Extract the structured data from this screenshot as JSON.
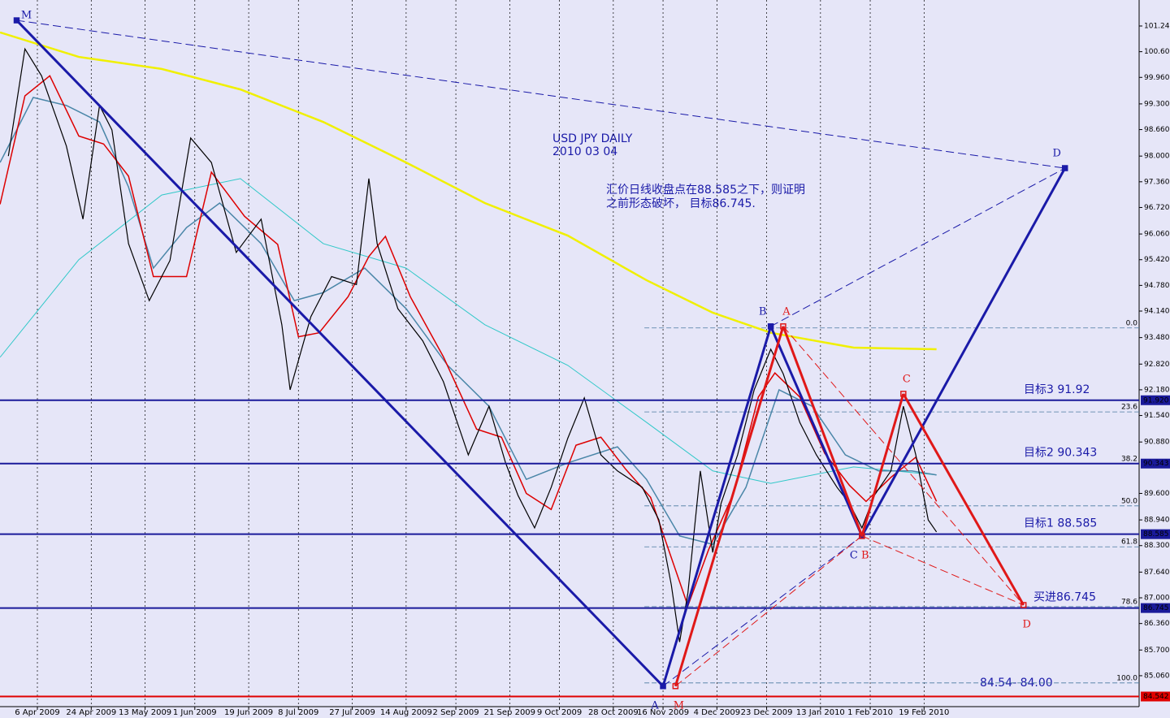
{
  "chart_data": {
    "type": "line",
    "title": "USD JPY  DAILY",
    "subtitle": "2010 03 04",
    "annotations": [
      "汇价日线收盘点在88.585之下，则证明",
      "之前形态破坏， 目标86.745."
    ],
    "range_note": "84.54- 84.00",
    "xlim": [
      -9.02,
      265.9
    ],
    "ylim": [
      84.29,
      101.887
    ],
    "grid": true,
    "xticks": [
      {
        "value": 0,
        "label": "6 Apr 2009"
      },
      {
        "value": 13,
        "label": "24 Apr 2009"
      },
      {
        "value": 26,
        "label": "13 May 2009"
      },
      {
        "value": 38,
        "label": "1 Jun 2009"
      },
      {
        "value": 51,
        "label": "19 Jun 2009"
      },
      {
        "value": 63,
        "label": "8 Jul 2009"
      },
      {
        "value": 76,
        "label": "27 Jul 2009"
      },
      {
        "value": 89,
        "label": "14 Aug 2009"
      },
      {
        "value": 101,
        "label": "2 Sep 2009"
      },
      {
        "value": 114,
        "label": "21 Sep 2009"
      },
      {
        "value": 126,
        "label": "9 Oct 2009"
      },
      {
        "value": 139,
        "label": "28 Oct 2009"
      },
      {
        "value": 151,
        "label": "16 Nov 2009"
      },
      {
        "value": 164,
        "label": "4 Dec 2009"
      },
      {
        "value": 176,
        "label": "23 Dec 2009"
      },
      {
        "value": 189,
        "label": "13 Jan 2010"
      },
      {
        "value": 201,
        "label": "1 Feb 2010"
      },
      {
        "value": 214,
        "label": "19 Feb 2010"
      }
    ],
    "yticks": [
      {
        "value": 101.24,
        "label": "101.240"
      },
      {
        "value": 100.6,
        "label": "100.600"
      },
      {
        "value": 99.96,
        "label": "99.960"
      },
      {
        "value": 99.3,
        "label": "99.300"
      },
      {
        "value": 98.66,
        "label": "98.660"
      },
      {
        "value": 98.0,
        "label": "98.000"
      },
      {
        "value": 97.36,
        "label": "97.360"
      },
      {
        "value": 96.72,
        "label": "96.720"
      },
      {
        "value": 96.06,
        "label": "96.060"
      },
      {
        "value": 95.42,
        "label": "95.420"
      },
      {
        "value": 94.78,
        "label": "94.780"
      },
      {
        "value": 94.14,
        "label": "94.140"
      },
      {
        "value": 93.48,
        "label": "93.480"
      },
      {
        "value": 92.82,
        "label": "92.820"
      },
      {
        "value": 92.18,
        "label": "92.180"
      },
      {
        "value": 91.54,
        "label": "91.540"
      },
      {
        "value": 90.88,
        "label": "90.880"
      },
      {
        "value": 89.6,
        "label": "89.600"
      },
      {
        "value": 88.94,
        "label": "88.940"
      },
      {
        "value": 88.3,
        "label": "88.300"
      },
      {
        "value": 87.64,
        "label": "87.640"
      },
      {
        "value": 87.0,
        "label": "87.000"
      },
      {
        "value": 86.36,
        "label": "86.360"
      },
      {
        "value": 85.7,
        "label": "85.700"
      },
      {
        "value": 85.06,
        "label": "85.060"
      }
    ],
    "series": [
      {
        "color": "#000000",
        "width": 1.2,
        "x": [
          -7,
          -3,
          1,
          7,
          11,
          15,
          18,
          22,
          27,
          32,
          37,
          42,
          48,
          54,
          59,
          61,
          66,
          71,
          77,
          80,
          82,
          87,
          93,
          98,
          104,
          109,
          113,
          116,
          120,
          124,
          128,
          132,
          136,
          140,
          146,
          150,
          153,
          155,
          157,
          160,
          163,
          165,
          169,
          173,
          177,
          180,
          184,
          188,
          193,
          196,
          199,
          202,
          206,
          209,
          212,
          215,
          217
        ],
        "values": [
          98.0,
          100.67,
          100.0,
          98.25,
          96.43,
          99.26,
          98.65,
          95.82,
          94.4,
          95.4,
          98.45,
          97.84,
          95.6,
          96.43,
          93.8,
          92.18,
          94.0,
          95.0,
          94.8,
          97.44,
          95.82,
          94.2,
          93.4,
          92.38,
          90.56,
          91.77,
          90.36,
          89.55,
          88.74,
          89.75,
          90.97,
          91.98,
          90.56,
          90.16,
          89.75,
          88.94,
          87.32,
          85.9,
          87.12,
          90.16,
          88.13,
          89.35,
          90.56,
          92.18,
          93.19,
          92.58,
          91.37,
          90.56,
          89.75,
          89.35,
          88.74,
          89.55,
          90.16,
          91.77,
          90.56,
          88.94,
          88.64
        ]
      },
      {
        "color": "#dd0000",
        "width": 1.5,
        "x": [
          -9,
          -3,
          3,
          10,
          16,
          22,
          28,
          36,
          42,
          50,
          58,
          63,
          68,
          75,
          80,
          84,
          90,
          98,
          106,
          112,
          118,
          124,
          130,
          136,
          142,
          148,
          153,
          157,
          162,
          168,
          174,
          178,
          184,
          190,
          196,
          200,
          206,
          212,
          217
        ],
        "values": [
          96.8,
          99.5,
          100.0,
          98.5,
          98.3,
          97.5,
          95.0,
          95.0,
          97.6,
          96.5,
          95.8,
          93.5,
          93.6,
          94.5,
          95.5,
          96.0,
          94.5,
          93.0,
          91.2,
          91.0,
          89.6,
          89.2,
          90.8,
          91.0,
          90.2,
          89.5,
          88.0,
          86.8,
          88.2,
          89.6,
          92.0,
          92.6,
          92.0,
          90.6,
          89.8,
          89.4,
          90.0,
          90.5,
          89.4
        ]
      },
      {
        "color": "#4a86a8",
        "width": 1.5,
        "x": [
          -9,
          -1,
          7,
          15,
          22,
          28,
          36,
          44,
          54,
          62,
          69,
          79,
          89,
          99,
          109,
          118,
          128,
          140,
          147,
          155,
          163,
          171,
          179,
          187,
          195,
          203,
          211,
          217
        ],
        "values": [
          97.84,
          99.46,
          99.26,
          98.85,
          97.23,
          95.21,
          96.22,
          96.83,
          95.82,
          94.4,
          94.6,
          95.21,
          94.2,
          92.79,
          91.77,
          89.95,
          90.36,
          90.76,
          89.95,
          88.54,
          88.33,
          89.75,
          92.18,
          91.77,
          90.56,
          90.16,
          90.16,
          90.06
        ]
      },
      {
        "color": "#30c8c8",
        "width": 1,
        "x": [
          -9,
          10,
          30,
          49,
          69,
          89,
          108,
          128,
          147,
          163,
          177,
          197,
          217
        ],
        "values": [
          92.99,
          95.42,
          97.03,
          97.44,
          95.82,
          95.21,
          93.8,
          92.79,
          91.37,
          90.16,
          89.85,
          90.26,
          90.06
        ]
      },
      {
        "color": "#f0f000",
        "width": 2.5,
        "x": [
          -9,
          10,
          30,
          49,
          69,
          89,
          108,
          128,
          147,
          163,
          177,
          197,
          217
        ],
        "values": [
          101.08,
          100.47,
          100.17,
          99.66,
          98.85,
          97.84,
          96.83,
          96.02,
          94.91,
          94.1,
          93.6,
          93.23,
          93.19
        ]
      }
    ],
    "levels": [
      {
        "price": 91.92,
        "axis_label": "91.920",
        "text": "目标3 91.92",
        "color": "#1a1a9a"
      },
      {
        "price": 90.343,
        "axis_label": "90.343",
        "text": "目标2 90.343",
        "color": "#1a1a9a"
      },
      {
        "price": 88.585,
        "axis_label": "88.585",
        "text": "目标1 88.585",
        "color": "#1a1a9a"
      },
      {
        "price": 86.745,
        "axis_label": "86.745",
        "text": "买进86.745",
        "color": "#1a1a9a"
      },
      {
        "price": 84.542,
        "axis_label": "84.542",
        "color": "#e00000"
      }
    ],
    "fib_levels": [
      {
        "label": "0.0",
        "price": 93.72
      },
      {
        "label": "23.6",
        "price": 91.63
      },
      {
        "label": "38.2",
        "price": 90.34
      },
      {
        "label": "50.0",
        "price": 89.29
      },
      {
        "label": "61.8",
        "price": 88.27
      },
      {
        "label": "78.6",
        "price": 86.78
      },
      {
        "label": "100.0",
        "price": 84.88
      }
    ],
    "patterns": [
      {
        "color": "#1a1aa8",
        "points": [
          {
            "label": "M",
            "x": -5,
            "y": 101.38
          },
          {
            "label": "A",
            "x": 151,
            "y": 84.8
          },
          {
            "label": "B",
            "x": 177,
            "y": 93.76
          },
          {
            "label": "C",
            "x": 199,
            "y": 88.54
          },
          {
            "label": "D",
            "x": 248,
            "y": 97.7
          }
        ]
      },
      {
        "color": "#e01818",
        "points": [
          {
            "label": "M",
            "x": 154,
            "y": 84.8
          },
          {
            "label": "A",
            "x": 180,
            "y": 93.76
          },
          {
            "label": "B",
            "x": 199,
            "y": 88.54
          },
          {
            "label": "C",
            "x": 209,
            "y": 92.08
          },
          {
            "label": "D",
            "x": 238,
            "y": 86.82
          }
        ]
      }
    ]
  }
}
